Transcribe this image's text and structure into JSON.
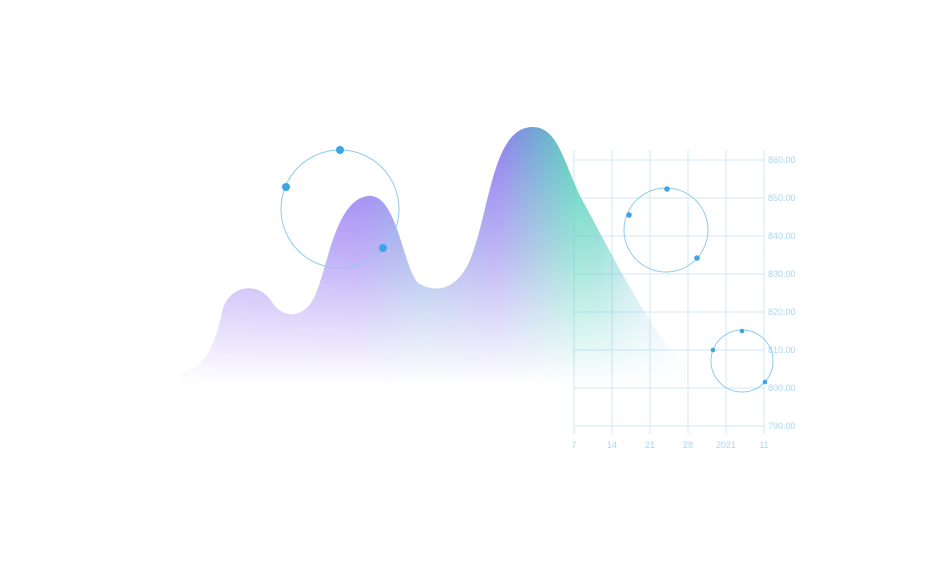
{
  "colors": {
    "grid": "#cfe8f6",
    "tick_text": "#a8d7f0",
    "orbit": "#8fcbef",
    "dot": "#3fa4e6",
    "purple": "#8b6cf1",
    "blue": "#6f94dc",
    "teal": "#4fd1b8",
    "background": "#ffffff"
  },
  "chart_data": {
    "type": "area",
    "title": "",
    "xlabel": "",
    "ylabel": "",
    "x_ticks": [
      "7",
      "14",
      "21",
      "28",
      "2021",
      "11"
    ],
    "y_ticks": [
      "860.00",
      "850.00",
      "840.00",
      "830.00",
      "820.00",
      "810.00",
      "800.00",
      "790.00"
    ],
    "ylim": [
      790,
      860
    ],
    "grid": true,
    "legend": "none",
    "y_axis_side": "right"
  }
}
